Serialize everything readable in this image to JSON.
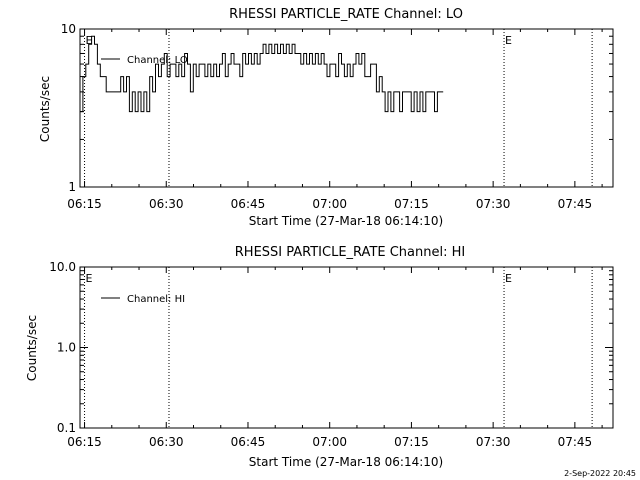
{
  "figure": {
    "background": "#ffffff",
    "foreground": "#000000",
    "footer": "2-Sep-2022 20:45"
  },
  "chart_data": [
    {
      "type": "line",
      "title": "RHESSI PARTICLE_RATE Channel: LO",
      "xlabel": "Start Time (27-Mar-18 06:14:10)",
      "ylabel": "Counts/sec",
      "x_unit": "time (HH:MM)",
      "xlim": [
        "06:14:10",
        "07:52:00"
      ],
      "x_ticks": [
        "06:15",
        "06:30",
        "06:45",
        "07:00",
        "07:15",
        "07:30",
        "07:45"
      ],
      "ylim": [
        1,
        10
      ],
      "yscale": "log",
      "y_ticks": [
        "1",
        "10"
      ],
      "grid": false,
      "legend": {
        "position": "top-left",
        "entries": [
          "Channel: LO"
        ]
      },
      "markers": [
        {
          "time": "06:15",
          "label": "E"
        },
        {
          "time": "06:30:30",
          "label": ""
        },
        {
          "time": "07:32:00",
          "label": "E"
        },
        {
          "time": "07:48:10",
          "label": ""
        }
      ],
      "series": [
        {
          "name": "Channel: LO",
          "interval_seconds": 32,
          "start": "06:14:10",
          "values": [
            3,
            5,
            6,
            8,
            9,
            8,
            6,
            5,
            5,
            4,
            4,
            4,
            4,
            4,
            5,
            4,
            5,
            3,
            4,
            3,
            4,
            3,
            4,
            3,
            5,
            4,
            6,
            5,
            6,
            7,
            5,
            6,
            6,
            5,
            6,
            5,
            7,
            6,
            4,
            6,
            5,
            6,
            6,
            5,
            6,
            5,
            6,
            5,
            6,
            7,
            5,
            6,
            7,
            6,
            6,
            5,
            7,
            6,
            7,
            6,
            7,
            6,
            7,
            8,
            7,
            8,
            7,
            8,
            7,
            8,
            7,
            8,
            7,
            8,
            7,
            7,
            6,
            7,
            6,
            7,
            6,
            7,
            6,
            7,
            6,
            5,
            6,
            6,
            5,
            7,
            6,
            5,
            6,
            5,
            6,
            7,
            6,
            7,
            5,
            5,
            6,
            6,
            4,
            5,
            4,
            3,
            4,
            3,
            4,
            4,
            3,
            4,
            4,
            4,
            3,
            4,
            3,
            4,
            3,
            4,
            4,
            4,
            3,
            4,
            4
          ]
        }
      ]
    },
    {
      "type": "line",
      "title": "RHESSI PARTICLE_RATE Channel: HI",
      "xlabel": "Start Time (27-Mar-18 06:14:10)",
      "ylabel": "Counts/sec",
      "x_unit": "time (HH:MM)",
      "xlim": [
        "06:14:10",
        "07:52:00"
      ],
      "x_ticks": [
        "06:15",
        "06:30",
        "06:45",
        "07:00",
        "07:15",
        "07:30",
        "07:45"
      ],
      "ylim": [
        0.1,
        10
      ],
      "yscale": "log",
      "y_ticks": [
        "0.1",
        "1.0",
        "10.0"
      ],
      "grid": false,
      "legend": {
        "position": "top-left",
        "entries": [
          "Channel: HI"
        ]
      },
      "markers": [
        {
          "time": "06:15",
          "label": "E"
        },
        {
          "time": "06:30:30",
          "label": ""
        },
        {
          "time": "07:32:00",
          "label": "E"
        },
        {
          "time": "07:48:10",
          "label": ""
        }
      ],
      "series": [
        {
          "name": "Channel: HI",
          "values": []
        }
      ]
    }
  ]
}
